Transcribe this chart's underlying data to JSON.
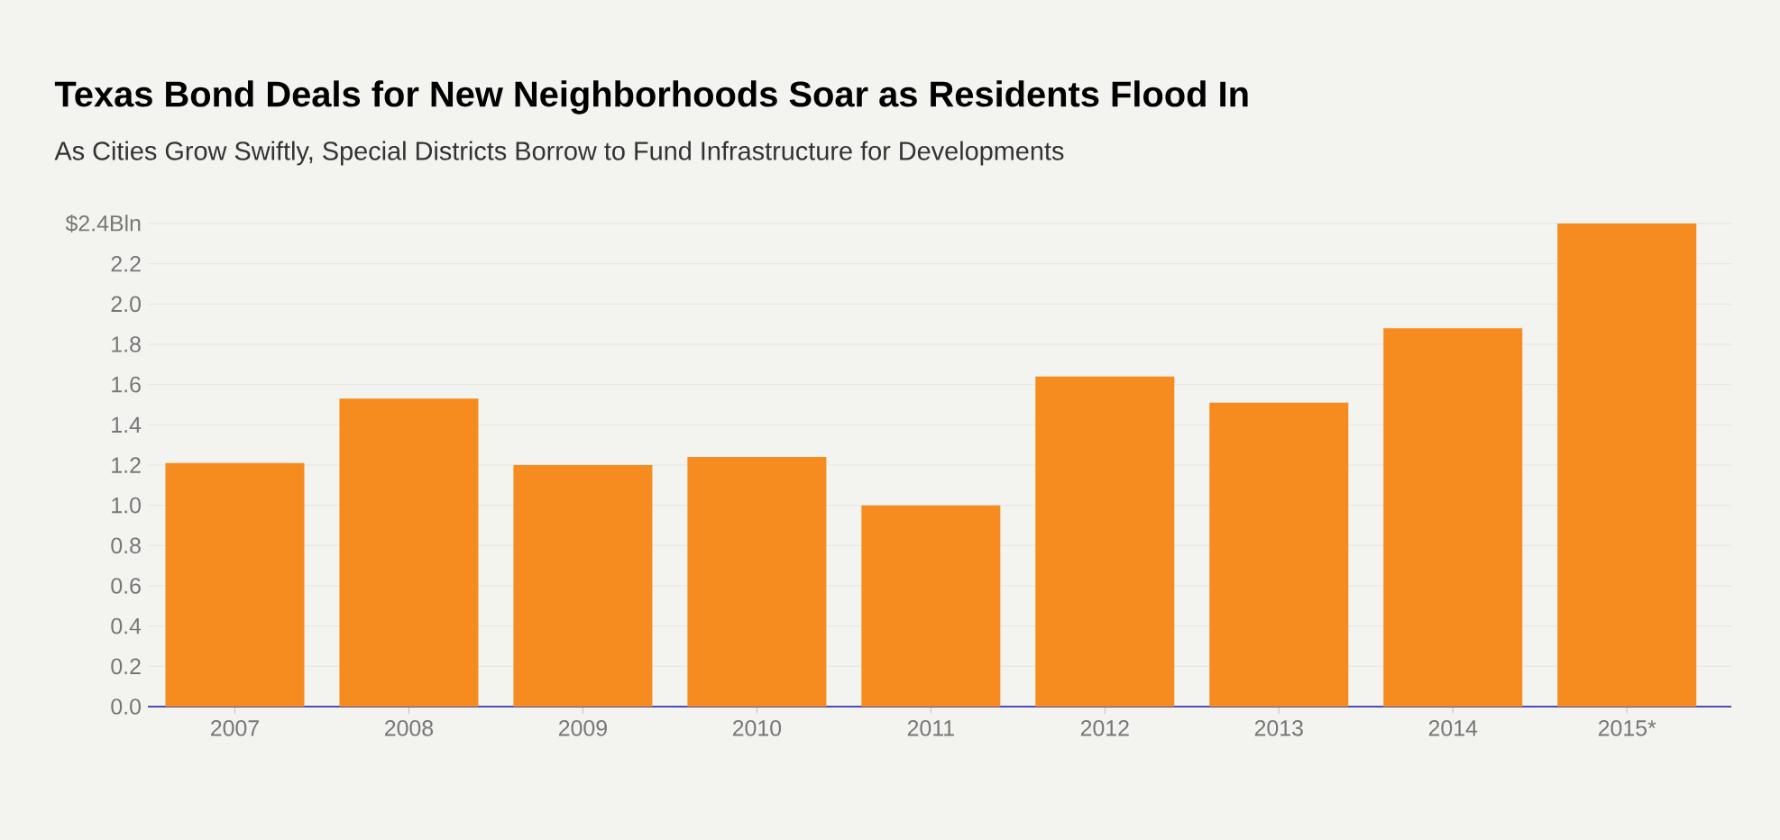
{
  "chart_data": {
    "type": "bar",
    "title": "Texas Bond Deals for New Neighborhoods Soar as Residents Flood In",
    "subtitle": "As Cities Grow Swiftly, Special Districts Borrow to Fund Infrastructure for Developments",
    "categories": [
      "2007",
      "2008",
      "2009",
      "2010",
      "2011",
      "2012",
      "2013",
      "2014",
      "2015*"
    ],
    "values": [
      1.21,
      1.53,
      1.2,
      1.24,
      1.0,
      1.64,
      1.51,
      1.88,
      2.4
    ],
    "color": "#f68b1f",
    "ylim": [
      0,
      2.4
    ],
    "yticks": [
      {
        "value": 0,
        "label": "0.0"
      },
      0.2,
      0.4,
      0.6,
      0.8,
      {
        "value": 1,
        "label": "1.0"
      },
      1.2,
      1.4,
      1.6,
      1.8,
      {
        "value": 2,
        "label": "2.0"
      },
      2.2,
      {
        "value": 2.4,
        "label": "$2.4Bln"
      }
    ],
    "grid": "y"
  }
}
